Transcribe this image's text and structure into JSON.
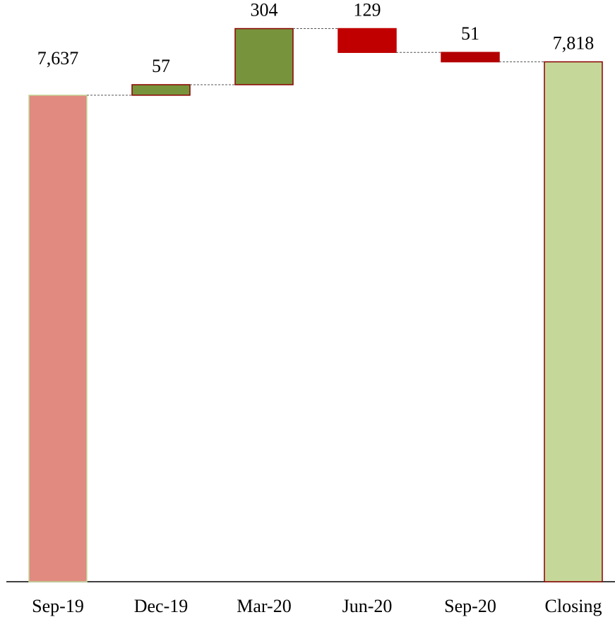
{
  "chart_data": {
    "type": "waterfall",
    "categories": [
      "Sep-19",
      "Dec-19",
      "Mar-20",
      "Jun-20",
      "Sep-20",
      "Closing"
    ],
    "measures": [
      "absolute",
      "relative",
      "relative",
      "relative",
      "relative",
      "total"
    ],
    "values": [
      7637,
      57,
      304,
      -129,
      -51,
      7818
    ],
    "value_labels": [
      "7,637",
      "57",
      "304",
      "129",
      "51",
      "7,818"
    ],
    "colors": [
      "#e08a80",
      "#77943c",
      "#77943c",
      "#c00000",
      "#b30000",
      "#c5d89a"
    ],
    "strokes": [
      "#c5d89a",
      "#8b0000",
      "#8b0000",
      "#c00000",
      "#b30000",
      "#8b0000"
    ],
    "ylim": [
      5000,
      8000
    ]
  }
}
